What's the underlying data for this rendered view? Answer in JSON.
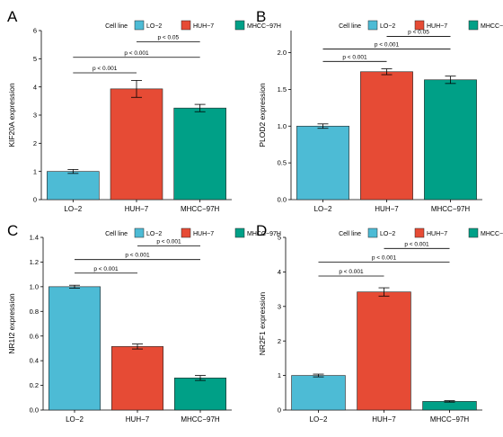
{
  "legend": {
    "title": "Cell line",
    "items": [
      {
        "label": "LO−2",
        "color": "#4DBBD5"
      },
      {
        "label": "HUH−7",
        "color": "#E64B35"
      },
      {
        "label": "MHCC−97H",
        "color": "#00A087"
      }
    ]
  },
  "chart_data": [
    {
      "panel": "A",
      "type": "bar",
      "ylabel": "KIF20A expression",
      "categories": [
        "LO−2",
        "HUH−7",
        "MHCC−97H"
      ],
      "values": [
        1.0,
        3.93,
        3.25
      ],
      "errors": [
        0.07,
        0.3,
        0.13
      ],
      "ylim": [
        0,
        6
      ],
      "yticks": [
        0,
        1,
        2,
        3,
        4,
        5,
        6
      ],
      "significance": [
        {
          "from": 1,
          "to": 2,
          "y": 4.5,
          "label": "p < 0.001"
        },
        {
          "from": 1,
          "to": 3,
          "y": 5.05,
          "label": "p < 0.001"
        },
        {
          "from": 2,
          "to": 3,
          "y": 5.6,
          "label": "p < 0.05"
        }
      ]
    },
    {
      "panel": "B",
      "type": "bar",
      "ylabel": "PLOD2 expression",
      "categories": [
        "LO−2",
        "HUH−7",
        "MHCC−97H"
      ],
      "values": [
        1.0,
        1.74,
        1.63
      ],
      "errors": [
        0.03,
        0.04,
        0.05
      ],
      "ylim": [
        0,
        2.3
      ],
      "yticks": [
        0.0,
        0.5,
        1.0,
        1.5,
        2.0
      ],
      "significance": [
        {
          "from": 1,
          "to": 2,
          "y": 1.88,
          "label": "p < 0.001"
        },
        {
          "from": 1,
          "to": 3,
          "y": 2.05,
          "label": "p < 0.001"
        },
        {
          "from": 2,
          "to": 3,
          "y": 2.22,
          "label": "p < 0.05"
        }
      ]
    },
    {
      "panel": "C",
      "type": "bar",
      "ylabel": "NR1I2 expression",
      "categories": [
        "LO−2",
        "HUH−7",
        "MHCC−97H"
      ],
      "values": [
        1.0,
        0.515,
        0.26
      ],
      "errors": [
        0.012,
        0.02,
        0.02
      ],
      "ylim": [
        0,
        1.4
      ],
      "yticks": [
        0.0,
        0.2,
        0.4,
        0.6,
        0.8,
        1.0,
        1.2,
        1.4
      ],
      "significance": [
        {
          "from": 1,
          "to": 2,
          "y": 1.11,
          "label": "p < 0.001"
        },
        {
          "from": 1,
          "to": 3,
          "y": 1.22,
          "label": "p < 0.001"
        },
        {
          "from": 2,
          "to": 3,
          "y": 1.33,
          "label": "p < 0.001"
        }
      ]
    },
    {
      "panel": "D",
      "type": "bar",
      "ylabel": "NR2F1 expression",
      "categories": [
        "LO−2",
        "HUH−7",
        "MHCC−97H"
      ],
      "values": [
        1.0,
        3.42,
        0.25
      ],
      "errors": [
        0.04,
        0.12,
        0.02
      ],
      "ylim": [
        0,
        5
      ],
      "yticks": [
        0,
        1,
        2,
        3,
        4,
        5
      ],
      "significance": [
        {
          "from": 1,
          "to": 2,
          "y": 3.88,
          "label": "p < 0.001"
        },
        {
          "from": 1,
          "to": 3,
          "y": 4.28,
          "label": "p < 0.001"
        },
        {
          "from": 2,
          "to": 3,
          "y": 4.68,
          "label": "p < 0.001"
        }
      ]
    }
  ]
}
